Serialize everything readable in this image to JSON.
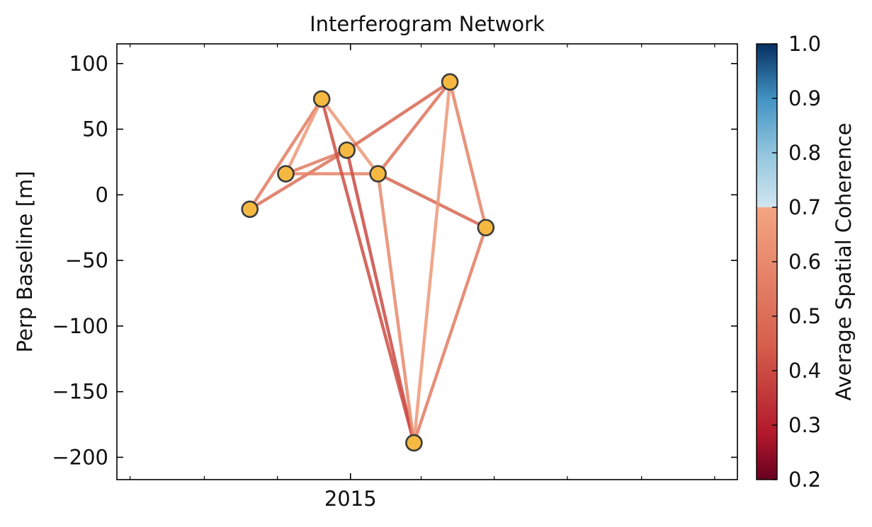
{
  "chart_data": {
    "type": "network",
    "title": "Interferogram Network",
    "xlabel": "",
    "ylabel": "Perp Baseline [m]",
    "x_tick_labels": [
      {
        "date": "2015-01-01",
        "label": "2015"
      }
    ],
    "xlim": [
      "2014-06-20",
      "2015-11-20"
    ],
    "ylim": [
      -217,
      115
    ],
    "y_ticks": [
      100,
      50,
      0,
      -50,
      -100,
      -150,
      -200
    ],
    "y_tick_labels": [
      "100",
      "50",
      "0",
      "−50",
      "−100",
      "−150",
      "−200"
    ],
    "nodes": [
      {
        "date": "2014-10-09",
        "bperp": -11
      },
      {
        "date": "2014-11-08",
        "bperp": 16
      },
      {
        "date": "2014-12-08",
        "bperp": 73
      },
      {
        "date": "2014-12-29",
        "bperp": 34
      },
      {
        "date": "2015-01-24",
        "bperp": 16
      },
      {
        "date": "2015-02-23",
        "bperp": -189
      },
      {
        "date": "2015-03-25",
        "bperp": 86
      },
      {
        "date": "2015-04-24",
        "bperp": -25
      }
    ],
    "edges": [
      {
        "from": 0,
        "to": 2,
        "coherence": 0.58
      },
      {
        "from": 0,
        "to": 3,
        "coherence": 0.55
      },
      {
        "from": 1,
        "to": 2,
        "coherence": 0.66
      },
      {
        "from": 1,
        "to": 3,
        "coherence": 0.58
      },
      {
        "from": 1,
        "to": 4,
        "coherence": 0.6
      },
      {
        "from": 2,
        "to": 4,
        "coherence": 0.66
      },
      {
        "from": 2,
        "to": 5,
        "coherence": 0.45
      },
      {
        "from": 3,
        "to": 5,
        "coherence": 0.44
      },
      {
        "from": 3,
        "to": 6,
        "coherence": 0.52
      },
      {
        "from": 4,
        "to": 5,
        "coherence": 0.62
      },
      {
        "from": 4,
        "to": 6,
        "coherence": 0.56
      },
      {
        "from": 4,
        "to": 7,
        "coherence": 0.52
      },
      {
        "from": 5,
        "to": 6,
        "coherence": 0.66
      },
      {
        "from": 5,
        "to": 7,
        "coherence": 0.58
      },
      {
        "from": 6,
        "to": 7,
        "coherence": 0.6
      }
    ],
    "colorbar": {
      "label": "Average Spatial Coherence",
      "range": [
        0.2,
        1.0
      ],
      "ticks": [
        0.2,
        0.3,
        0.4,
        0.5,
        0.6,
        0.7,
        0.8,
        0.9,
        1.0
      ],
      "tick_labels": [
        "0.2",
        "0.3",
        "0.4",
        "0.5",
        "0.6",
        "0.7",
        "0.8",
        "0.9",
        "1.0"
      ],
      "colormap": "RdBu truncated",
      "upper_region_start": 0.7
    },
    "node_fill": "#f5b942",
    "node_stroke": "#3a3a3a"
  }
}
